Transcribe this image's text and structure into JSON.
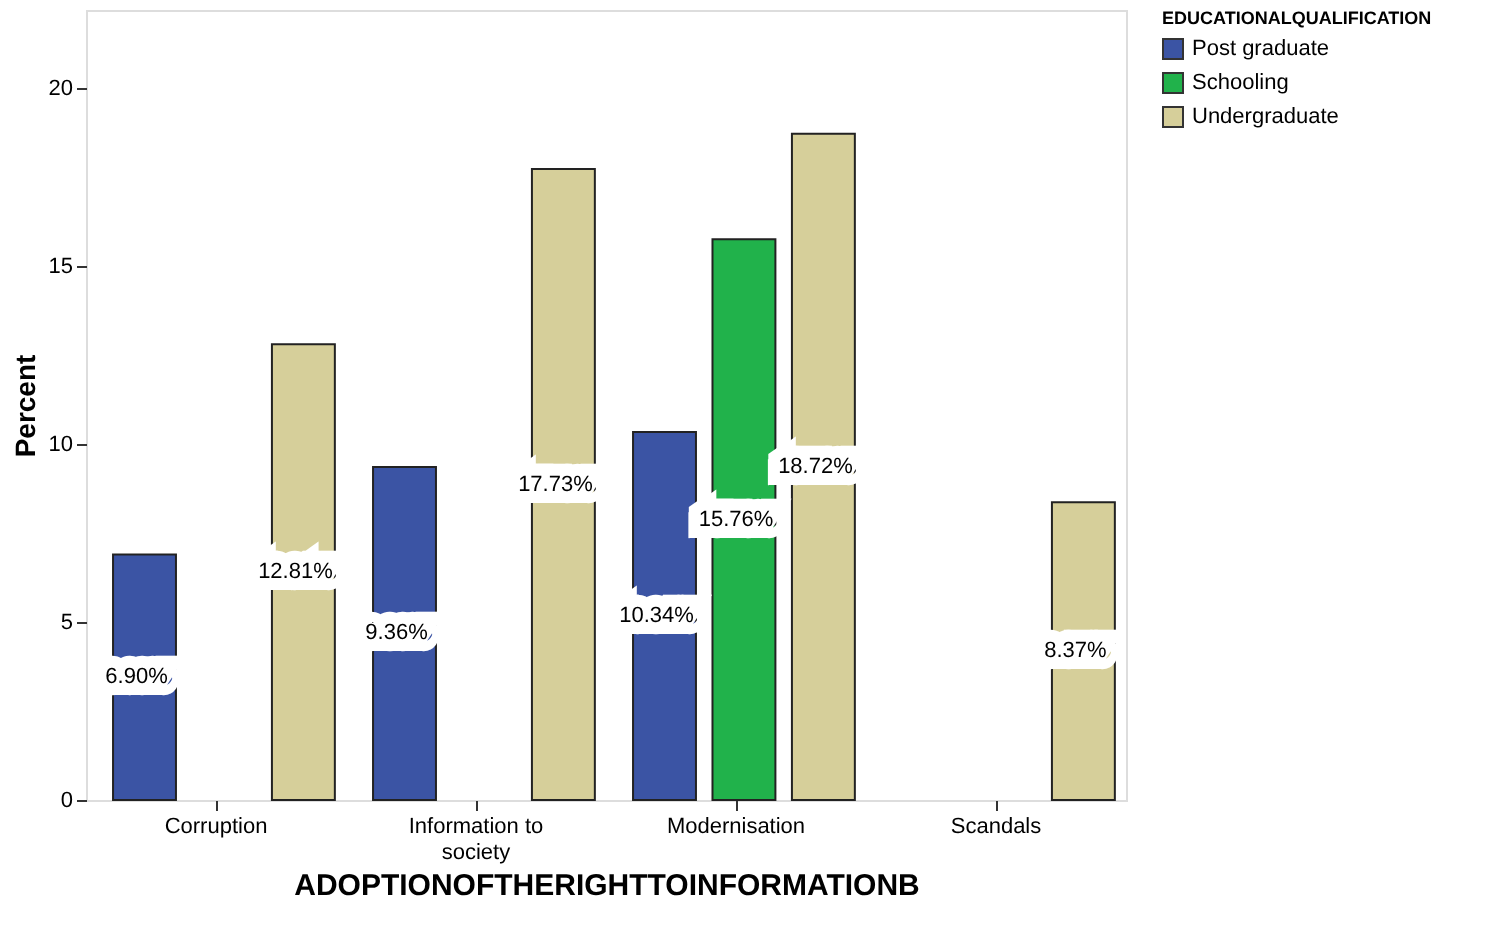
{
  "chart_data": {
    "type": "bar",
    "xlabel": "ADOPTIONOFTHERIGHTTOINFORMATIONB",
    "ylabel": "Percent",
    "legend_title": "EDUCATIONALQUALIFICATION",
    "legend": "right",
    "grid": false,
    "categories": [
      "Corruption",
      "Information to society",
      "Modernisation",
      "Scandals"
    ],
    "ylim": [
      0,
      22.2
    ],
    "yticks": [
      0,
      5,
      10,
      15,
      20
    ],
    "series": [
      {
        "name": "Post graduate",
        "color": "#3b54a4",
        "values": [
          6.9,
          9.36,
          10.34,
          null
        ],
        "value_labels": [
          "6.90%",
          "9.36%",
          "10.34%",
          null
        ]
      },
      {
        "name": "Schooling",
        "color": "#21b24b",
        "values": [
          null,
          null,
          15.76,
          null
        ],
        "value_labels": [
          null,
          null,
          "15.76%",
          null
        ]
      },
      {
        "name": "Undergraduate",
        "color": "#d6cf9a",
        "values": [
          12.81,
          17.73,
          18.72,
          8.37
        ],
        "value_labels": [
          "12.81%",
          "17.73%",
          "18.72%",
          "8.37%"
        ]
      }
    ]
  }
}
